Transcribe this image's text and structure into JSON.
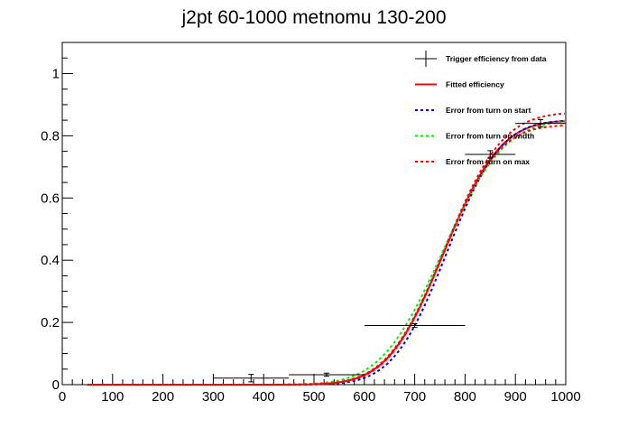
{
  "chart_data": {
    "type": "line",
    "title": "j2pt 60-1000 metnomu 130-200",
    "xlabel": "",
    "ylabel": "",
    "xlim": [
      0,
      1000
    ],
    "ylim": [
      0,
      1.1
    ],
    "x_ticks": [
      0,
      100,
      200,
      300,
      400,
      500,
      600,
      700,
      800,
      900,
      1000
    ],
    "y_ticks": [
      0,
      0.2,
      0.4,
      0.6,
      0.8,
      1
    ],
    "grid": false,
    "legend_position": "top-right",
    "data_points": {
      "name": "Trigger efficiency from data",
      "color": "#000000",
      "points": [
        {
          "x": 375,
          "xerr": 75,
          "y": 0.021,
          "yerr": 0.012
        },
        {
          "x": 525,
          "xerr": 75,
          "y": 0.032,
          "yerr": 0.005
        },
        {
          "x": 700,
          "xerr": 100,
          "y": 0.19,
          "yerr": 0.006
        },
        {
          "x": 850,
          "xerr": 50,
          "y": 0.74,
          "yerr": 0.012
        },
        {
          "x": 950,
          "xerr": 50,
          "y": 0.84,
          "yerr": 0.012
        }
      ]
    },
    "fit_model": "erf",
    "series": [
      {
        "name": "Fitted efficiency",
        "color": "#ff0000",
        "style": "solid",
        "plateau": 0.85,
        "mu": 758,
        "sigma": 88
      },
      {
        "name": "Error from turn on start",
        "color": "#0000cc",
        "style": "dotted",
        "plateau": 0.85,
        "mu": 764,
        "sigma": 84
      },
      {
        "name": "Error from turn on width",
        "color": "#00ee00",
        "style": "dotted",
        "plateau": 0.85,
        "mu": 755,
        "sigma": 96
      },
      {
        "name": "Error from turn on max",
        "color": "#ff0000",
        "style": "dotted",
        "plateau": 0.875,
        "mu": 760,
        "sigma": 90
      },
      {
        "name": "",
        "color": "#ff0000",
        "style": "dotted",
        "plateau": 0.835,
        "mu": 756,
        "sigma": 86
      }
    ],
    "legend": [
      {
        "label": "Trigger efficiency from data",
        "kind": "marker",
        "color": "#000000"
      },
      {
        "label": "Fitted efficiency",
        "kind": "line",
        "color": "#ff0000"
      },
      {
        "label": "Error from turn on start",
        "kind": "dotted",
        "color": "#0000cc"
      },
      {
        "label": "Error from turn on width",
        "kind": "dotted",
        "color": "#00ee00"
      },
      {
        "label": "Error from turn on max",
        "kind": "dotted",
        "color": "#ff0000"
      }
    ]
  }
}
